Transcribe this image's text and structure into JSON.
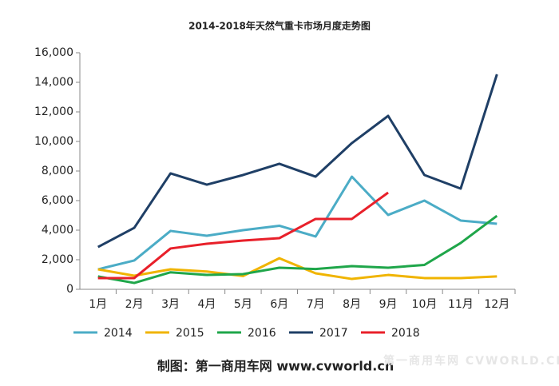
{
  "chart_data": {
    "type": "line",
    "title": "2014-2018年天然气重卡市场月度走势图",
    "categories": [
      "1月",
      "2月",
      "3月",
      "4月",
      "5月",
      "6月",
      "7月",
      "8月",
      "9月",
      "10月",
      "11月",
      "12月"
    ],
    "series": [
      {
        "name": "2014",
        "color": "#4bacc6",
        "values": [
          1350,
          1950,
          3950,
          3620,
          4000,
          4300,
          3570,
          7620,
          5030,
          6000,
          4650,
          4430
        ]
      },
      {
        "name": "2015",
        "color": "#f0b400",
        "values": [
          1350,
          920,
          1350,
          1200,
          900,
          2100,
          1080,
          700,
          970,
          760,
          760,
          870
        ]
      },
      {
        "name": "2016",
        "color": "#1fa64a",
        "values": [
          870,
          430,
          1150,
          970,
          1030,
          1460,
          1370,
          1570,
          1460,
          1650,
          3130,
          4970
        ]
      },
      {
        "name": "2017",
        "color": "#1f3f66",
        "values": [
          2860,
          4160,
          7840,
          7080,
          7730,
          8490,
          7620,
          9890,
          11730,
          7730,
          6810,
          14540
        ]
      },
      {
        "name": "2018",
        "color": "#e8202a",
        "values": [
          760,
          760,
          2760,
          3080,
          3300,
          3460,
          4760,
          4760,
          6540,
          null,
          null,
          null
        ]
      }
    ],
    "ylim": [
      0,
      16000
    ],
    "yticks": [
      0,
      {
        "value": 2000,
        "label": "2,000"
      },
      {
        "value": 4000,
        "label": "4,000"
      },
      {
        "value": 6000,
        "label": "6,000"
      },
      {
        "value": 8000,
        "label": "8,000"
      },
      {
        "value": 10000,
        "label": "10,000"
      },
      {
        "value": 12000,
        "label": "12,000"
      },
      {
        "value": 14000,
        "label": "14,000"
      },
      {
        "value": 16000,
        "label": "16,000"
      }
    ],
    "legend": "bottom",
    "source": "制图：第一商用车网 www.cvworld.cn",
    "watermark": "第一商用车网 CVWORLD.CN"
  }
}
